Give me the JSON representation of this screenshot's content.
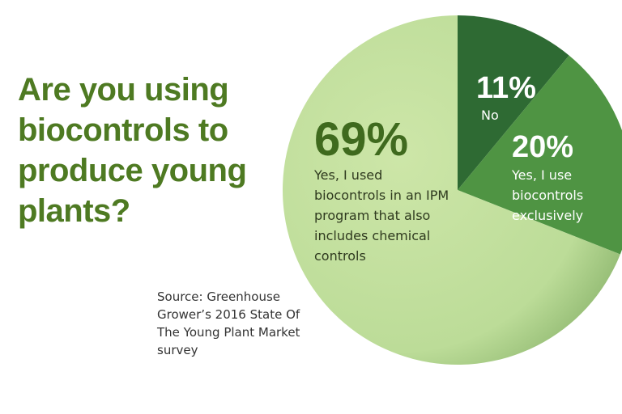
{
  "chart_data": {
    "type": "pie",
    "title": "Are you using biocontrols to produce young plants?",
    "source": "Source: Greenhouse Grower’s 2016 State Of The Young Plant Market survey",
    "categories": [
      "No",
      "Yes, I use biocontrols exclusively",
      "Yes, I used biocontrols in an IPM program that also includes chemical controls"
    ],
    "values": [
      11,
      20,
      69
    ],
    "value_labels": [
      "11%",
      "20%",
      "69%"
    ],
    "colors": [
      "#2e6a33",
      "#4f9443",
      "#bcdc98"
    ]
  }
}
